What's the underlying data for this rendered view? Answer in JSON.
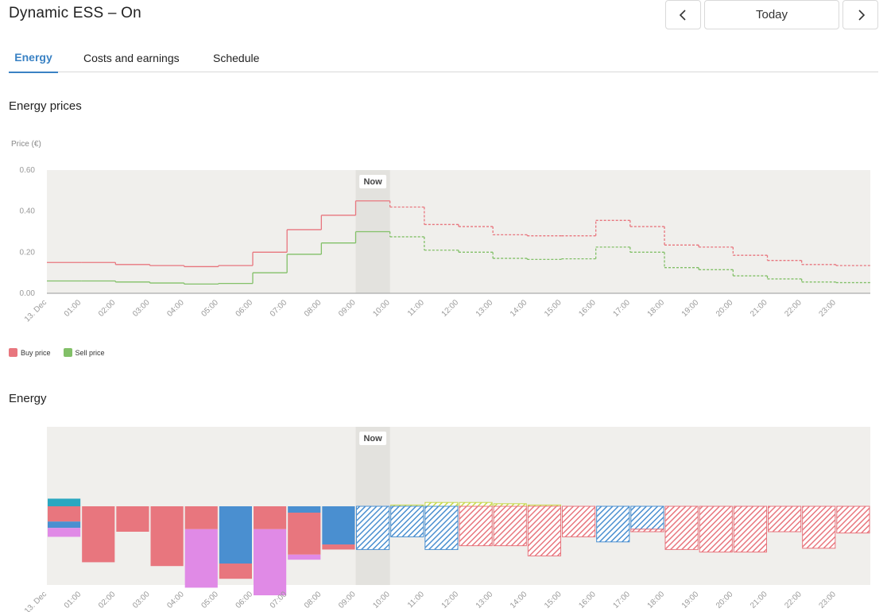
{
  "header": {
    "title": "Dynamic ESS – On",
    "today_label": "Today"
  },
  "tabs": [
    {
      "label": "Energy",
      "active": true
    },
    {
      "label": "Costs and earnings",
      "active": false
    },
    {
      "label": "Schedule",
      "active": false
    }
  ],
  "colors": {
    "buy": "#e8767e",
    "sell": "#82c068",
    "grid_blue": "#4a8fd0",
    "teal": "#2aa7c0",
    "violet": "#e08ae6",
    "solar_yellow": "#c6d84a",
    "accent": "#3a82c4",
    "plot_bg": "#f0efec"
  },
  "sections": {
    "prices_title": "Energy prices",
    "energy_title": "Energy"
  },
  "chart_data": [
    {
      "type": "line",
      "step": true,
      "title": "Energy prices",
      "ylabel": "Price (€)",
      "ylim": [
        0,
        0.6
      ],
      "y_ticks": [
        "0.00",
        "0.20",
        "0.40",
        "0.60"
      ],
      "x_ticks": [
        "13. Dec",
        "01:00",
        "02:00",
        "03:00",
        "04:00",
        "05:00",
        "06:00",
        "07:00",
        "08:00",
        "09:00",
        "10:00",
        "11:00",
        "12:00",
        "13:00",
        "14:00",
        "15:00",
        "16:00",
        "17:00",
        "18:00",
        "19:00",
        "20:00",
        "21:00",
        "22:00",
        "23:00"
      ],
      "now_label": "Now",
      "now_hour": 9,
      "forecast_from_hour": 10,
      "series": [
        {
          "name": "Buy price",
          "color": "#e8767e",
          "values": [
            0.15,
            0.15,
            0.14,
            0.135,
            0.13,
            0.135,
            0.2,
            0.31,
            0.38,
            0.45,
            0.42,
            0.335,
            0.325,
            0.285,
            0.28,
            0.28,
            0.355,
            0.325,
            0.235,
            0.225,
            0.185,
            0.16,
            0.14,
            0.135
          ]
        },
        {
          "name": "Sell price",
          "color": "#82c068",
          "values": [
            0.06,
            0.06,
            0.055,
            0.05,
            0.045,
            0.048,
            0.1,
            0.19,
            0.245,
            0.3,
            0.275,
            0.21,
            0.2,
            0.17,
            0.165,
            0.168,
            0.225,
            0.2,
            0.125,
            0.115,
            0.085,
            0.07,
            0.055,
            0.052
          ]
        }
      ],
      "legend": [
        "Buy price",
        "Sell price"
      ],
      "legend_position": "bottom-left"
    },
    {
      "type": "bar",
      "stacked": true,
      "title": "Energy",
      "x_ticks": [
        "13. Dec",
        "01:00",
        "02:00",
        "03:00",
        "04:00",
        "05:00",
        "06:00",
        "07:00",
        "08:00",
        "09:00",
        "10:00",
        "11:00",
        "12:00",
        "13:00",
        "14:00",
        "15:00",
        "16:00",
        "17:00",
        "18:00",
        "19:00",
        "20:00",
        "21:00",
        "22:00",
        "23:00"
      ],
      "ylim": [
        -1.0,
        1.0
      ],
      "now_label": "Now",
      "now_hour": 9,
      "forecast_from_hour": 9,
      "hours": [
        {
          "segs": [
            {
              "c": "teal",
              "v": 0.06
            },
            {
              "c": "buy",
              "v": -0.12
            },
            {
              "c": "blue",
              "v": -0.05
            },
            {
              "c": "violet",
              "v": -0.07
            }
          ]
        },
        {
          "segs": [
            {
              "c": "buy",
              "v": -0.44
            }
          ]
        },
        {
          "segs": [
            {
              "c": "buy",
              "v": -0.2
            }
          ]
        },
        {
          "segs": [
            {
              "c": "buy",
              "v": -0.47
            }
          ]
        },
        {
          "segs": [
            {
              "c": "buy",
              "v": -0.18
            },
            {
              "c": "violet",
              "v": -0.46
            }
          ]
        },
        {
          "segs": [
            {
              "c": "blue",
              "v": -0.45
            },
            {
              "c": "buy",
              "v": -0.12
            }
          ]
        },
        {
          "segs": [
            {
              "c": "buy",
              "v": -0.18
            },
            {
              "c": "violet",
              "v": -0.52
            }
          ]
        },
        {
          "segs": [
            {
              "c": "blue",
              "v": -0.05
            },
            {
              "c": "buy",
              "v": -0.33
            },
            {
              "c": "violet",
              "v": -0.04
            }
          ]
        },
        {
          "segs": [
            {
              "c": "blue",
              "v": -0.3
            },
            {
              "c": "buy",
              "v": -0.04
            }
          ]
        },
        {
          "segs": [
            {
              "c": "blue",
              "v": -0.34
            }
          ]
        },
        {
          "segs": [
            {
              "c": "yellow",
              "v": 0.01
            },
            {
              "c": "blue",
              "v": -0.24
            }
          ]
        },
        {
          "segs": [
            {
              "c": "yellow",
              "v": 0.03
            },
            {
              "c": "blue",
              "v": -0.34
            }
          ]
        },
        {
          "segs": [
            {
              "c": "yellow",
              "v": 0.03
            },
            {
              "c": "buy",
              "v": -0.31
            }
          ]
        },
        {
          "segs": [
            {
              "c": "yellow",
              "v": 0.02
            },
            {
              "c": "buy",
              "v": -0.31
            }
          ]
        },
        {
          "segs": [
            {
              "c": "yellow",
              "v": 0.01
            },
            {
              "c": "buy",
              "v": -0.39
            }
          ]
        },
        {
          "segs": [
            {
              "c": "buy",
              "v": -0.24
            }
          ]
        },
        {
          "segs": [
            {
              "c": "blue",
              "v": -0.28
            }
          ]
        },
        {
          "segs": [
            {
              "c": "blue",
              "v": -0.18
            },
            {
              "c": "buy",
              "v": -0.02
            }
          ]
        },
        {
          "segs": [
            {
              "c": "buy",
              "v": -0.34
            }
          ]
        },
        {
          "segs": [
            {
              "c": "buy",
              "v": -0.36
            }
          ]
        },
        {
          "segs": [
            {
              "c": "buy",
              "v": -0.36
            }
          ]
        },
        {
          "segs": [
            {
              "c": "buy",
              "v": -0.2
            }
          ]
        },
        {
          "segs": [
            {
              "c": "buy",
              "v": -0.33
            }
          ]
        },
        {
          "segs": [
            {
              "c": "buy",
              "v": -0.21
            }
          ]
        }
      ]
    }
  ]
}
